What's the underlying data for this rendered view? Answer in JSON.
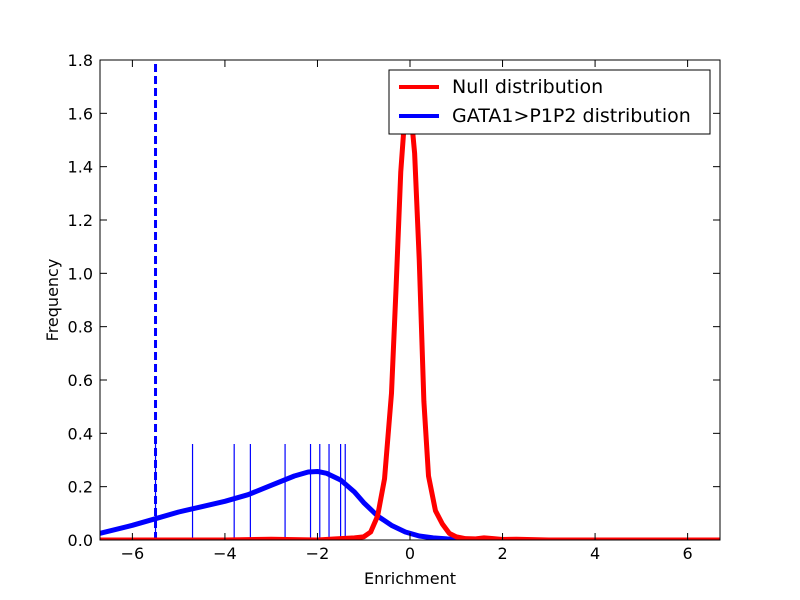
{
  "chart_data": {
    "type": "line",
    "xlabel": "Enrichment",
    "ylabel": "Frequency",
    "xlim": [
      -6.7,
      6.7
    ],
    "ylim": [
      0,
      1.8
    ],
    "x_ticks": [
      -6,
      -4,
      -2,
      0,
      2,
      4,
      6
    ],
    "x_tick_labels": [
      "−6",
      "−4",
      "−2",
      "0",
      "2",
      "4",
      "6"
    ],
    "y_ticks": [
      0,
      0.2,
      0.4,
      0.6,
      0.8,
      1.0,
      1.2,
      1.4,
      1.6,
      1.8
    ],
    "y_tick_labels": [
      "0.0",
      "0.2",
      "0.4",
      "0.6",
      "0.8",
      "1.0",
      "1.2",
      "1.4",
      "1.6",
      "1.8"
    ],
    "grid": false,
    "legend_position": "top-right",
    "series": [
      {
        "name": "Null distribution",
        "color": "#ff0000",
        "x": [
          -6.7,
          -5.0,
          -4.0,
          -3.0,
          -2.0,
          -1.6,
          -1.4,
          -1.2,
          -1.0,
          -0.85,
          -0.7,
          -0.55,
          -0.4,
          -0.3,
          -0.2,
          -0.1,
          0.0,
          0.1,
          0.2,
          0.3,
          0.4,
          0.55,
          0.7,
          0.85,
          1.0,
          1.2,
          1.4,
          1.6,
          1.8,
          2.0,
          2.3,
          3.0,
          4.0,
          5.0,
          6.7
        ],
        "y": [
          0.0,
          0.0,
          0.0,
          0.003,
          0.0,
          0.004,
          0.006,
          0.008,
          0.012,
          0.03,
          0.09,
          0.23,
          0.55,
          0.95,
          1.38,
          1.62,
          1.64,
          1.45,
          1.05,
          0.52,
          0.24,
          0.11,
          0.06,
          0.025,
          0.012,
          0.005,
          0.004,
          0.008,
          0.005,
          0.002,
          0.003,
          0.0,
          0.0,
          0.0,
          0.0
        ]
      },
      {
        "name": "GATA1>P1P2 distribution",
        "color": "#0000ff",
        "x": [
          -6.7,
          -6.0,
          -5.5,
          -5.0,
          -4.5,
          -4.0,
          -3.5,
          -3.0,
          -2.5,
          -2.2,
          -2.0,
          -1.8,
          -1.5,
          -1.2,
          -1.0,
          -0.7,
          -0.4,
          -0.1,
          0.2,
          0.5,
          0.8,
          1.2,
          2.0,
          3.0,
          4.0,
          5.0,
          6.7
        ],
        "y": [
          0.025,
          0.055,
          0.08,
          0.105,
          0.125,
          0.145,
          0.17,
          0.205,
          0.24,
          0.255,
          0.257,
          0.25,
          0.225,
          0.18,
          0.14,
          0.09,
          0.055,
          0.03,
          0.015,
          0.008,
          0.004,
          0.002,
          0.0,
          0.0,
          0.0,
          0.0,
          0.0
        ]
      }
    ],
    "rug": {
      "color": "#0000ff",
      "height": 0.36,
      "x": [
        -5.5,
        -4.7,
        -3.8,
        -3.45,
        -2.7,
        -2.15,
        -1.95,
        -1.75,
        -1.5,
        -1.4
      ]
    },
    "reference_line": {
      "color": "#0000ff",
      "style": "dashed",
      "x": -5.5
    }
  }
}
